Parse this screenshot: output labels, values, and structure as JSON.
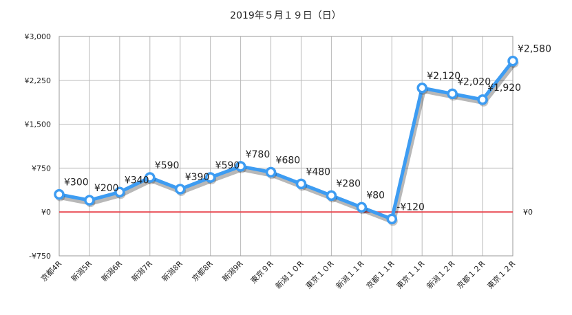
{
  "chart_data": {
    "type": "line",
    "title": "2019年５月１９日（日）",
    "categories": [
      "京都4R",
      "新潟5R",
      "新潟6R",
      "新潟7R",
      "新潟8R",
      "京都8R",
      "新潟9R",
      "東京９R",
      "新潟１０R",
      "東京１０R",
      "新潟１１R",
      "京都１１R",
      "東京１１R",
      "新潟１２R",
      "京都１２R",
      "東京１２R"
    ],
    "series": [
      {
        "values": [
          300,
          200,
          340,
          590,
          390,
          590,
          780,
          680,
          480,
          280,
          80,
          -120,
          2120,
          2020,
          1920,
          2580
        ],
        "labels": [
          "¥300",
          "¥200",
          "¥340",
          "¥590",
          "¥390",
          "¥590",
          "¥780",
          "¥680",
          "¥480",
          "¥280",
          "¥80",
          "-¥120",
          "¥2,120",
          "¥2,020",
          "¥1,920",
          "¥2,580"
        ]
      }
    ],
    "ylim": [
      -750,
      3000
    ],
    "yticks": [
      -750,
      0,
      750,
      1500,
      2250,
      3000
    ],
    "ytick_labels": [
      "-¥750",
      "¥0",
      "¥750",
      "¥1,500",
      "¥2,250",
      "¥3,000"
    ],
    "right_axis_label": "¥0",
    "reference_line": {
      "value": 0,
      "color": "#e8474f"
    },
    "line_color": "#3d9cf2",
    "grid": true,
    "legend": "none"
  }
}
